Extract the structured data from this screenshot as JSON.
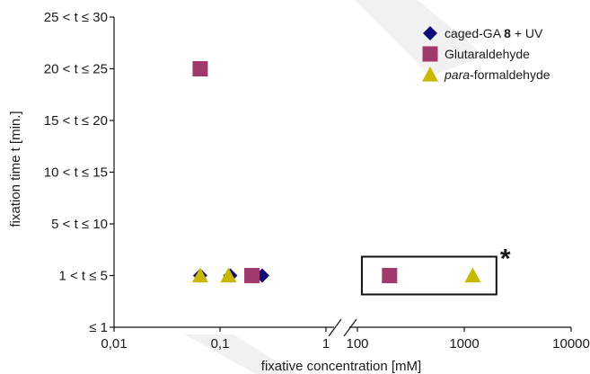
{
  "chart_data": {
    "type": "scatter",
    "xlabel": "fixative concentration [mM]",
    "ylabel": "fixation time t [min.]",
    "x_scale": "log",
    "x_axis_broken": true,
    "x_segments": [
      {
        "range": [
          0.01,
          1
        ]
      },
      {
        "range": [
          100,
          10000
        ]
      }
    ],
    "x_ticks": [
      {
        "value": 0.01,
        "label": "0,01"
      },
      {
        "value": 0.1,
        "label": "0,1"
      },
      {
        "value": 1,
        "label": "1"
      },
      {
        "value": 100,
        "label": "100"
      },
      {
        "value": 1000,
        "label": "1000"
      },
      {
        "value": 10000,
        "label": "10000"
      }
    ],
    "y_categories": [
      "≤ 1",
      "1 < t ≤ 5",
      "5 < t ≤ 10",
      "10 < t ≤ 15",
      "15 < t ≤ 20",
      "20 < t ≤ 25",
      "25 < t ≤ 30"
    ],
    "grid": false,
    "legend_position": "top-right",
    "series": [
      {
        "name_parts": [
          "caged-GA ",
          "8",
          " + UV"
        ],
        "marker": "diamond",
        "color": "#0f0f7a",
        "points": [
          {
            "x": 0.065,
            "y": "1 < t ≤ 5"
          },
          {
            "x": 0.125,
            "y": "1 < t ≤ 5"
          },
          {
            "x": 0.25,
            "y": "1 < t ≤ 5"
          }
        ]
      },
      {
        "name_parts": [
          "Glutaraldehyde"
        ],
        "marker": "square",
        "color": "#a03a6c",
        "points": [
          {
            "x": 0.065,
            "y": "20 < t ≤ 25"
          },
          {
            "x": 0.2,
            "y": "1 < t ≤ 5"
          },
          {
            "x": 200,
            "y": "1 < t ≤ 5"
          }
        ]
      },
      {
        "name_parts": [
          "para",
          "-formaldehyde"
        ],
        "marker": "triangle",
        "color": "#c9b800",
        "points": [
          {
            "x": 0.065,
            "y": "1 < t ≤ 5"
          },
          {
            "x": 0.12,
            "y": "1 < t ≤ 5"
          },
          {
            "x": 1200,
            "y": "1 < t ≤ 5"
          }
        ]
      }
    ],
    "annotation": {
      "text": "*",
      "box_x_range": [
        110,
        2000
      ],
      "box_y_category": "1 < t ≤ 5"
    }
  }
}
